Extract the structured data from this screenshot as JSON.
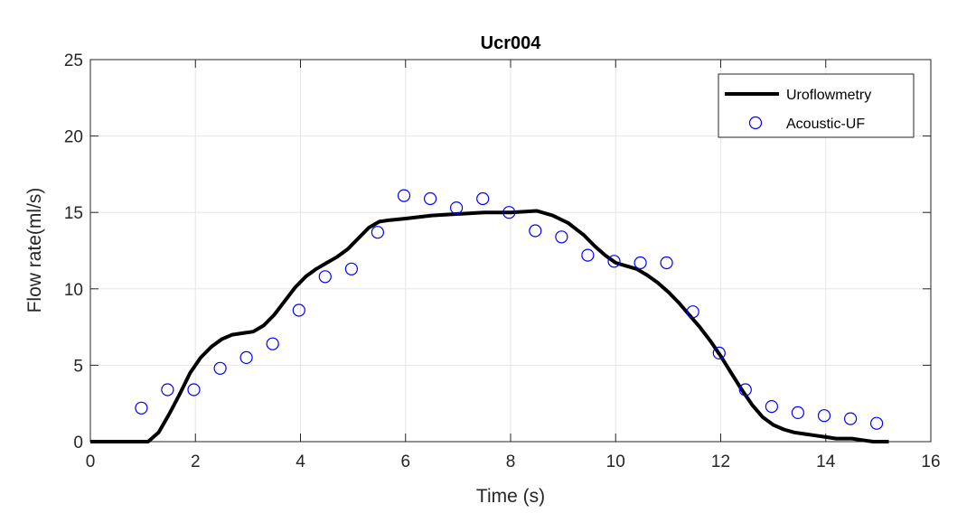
{
  "chart_data": {
    "type": "line",
    "title": "Ucr004",
    "xlabel": "Time (s)",
    "ylabel": "Flow rate(ml/s)",
    "xlim": [
      0,
      16
    ],
    "ylim": [
      0,
      25
    ],
    "xticks": [
      0,
      2,
      4,
      6,
      8,
      10,
      12,
      14,
      16
    ],
    "yticks": [
      0,
      5,
      10,
      15,
      20,
      25
    ],
    "grid": true,
    "legend_position": "top-right",
    "series": [
      {
        "name": "Uroflowmetry",
        "style": "line",
        "color": "#000000",
        "x": [
          0,
          1.1,
          1.3,
          1.5,
          1.7,
          1.9,
          2.1,
          2.3,
          2.5,
          2.7,
          2.9,
          3.1,
          3.3,
          3.5,
          3.7,
          3.9,
          4.1,
          4.3,
          4.5,
          4.7,
          4.9,
          5.1,
          5.3,
          5.5,
          5.7,
          6.0,
          6.5,
          7.0,
          7.5,
          8.0,
          8.5,
          8.8,
          9.1,
          9.4,
          9.6,
          9.8,
          10.0,
          10.2,
          10.4,
          10.6,
          10.8,
          11.0,
          11.2,
          11.4,
          11.6,
          11.8,
          12.0,
          12.2,
          12.4,
          12.6,
          12.8,
          13.0,
          13.2,
          13.4,
          13.6,
          13.8,
          14.0,
          14.2,
          14.5,
          14.7,
          14.9,
          15.2
        ],
        "y": [
          0,
          0,
          0.6,
          1.8,
          3.1,
          4.5,
          5.5,
          6.2,
          6.7,
          7.0,
          7.1,
          7.2,
          7.6,
          8.3,
          9.2,
          10.1,
          10.8,
          11.3,
          11.7,
          12.1,
          12.6,
          13.3,
          14.0,
          14.4,
          14.5,
          14.6,
          14.8,
          14.9,
          15.0,
          15.0,
          15.1,
          14.8,
          14.3,
          13.5,
          12.8,
          12.2,
          11.7,
          11.5,
          11.3,
          10.9,
          10.4,
          9.8,
          9.1,
          8.3,
          7.5,
          6.6,
          5.6,
          4.5,
          3.4,
          2.4,
          1.6,
          1.1,
          0.8,
          0.6,
          0.5,
          0.4,
          0.3,
          0.2,
          0.2,
          0.1,
          0,
          0
        ]
      },
      {
        "name": "Acoustic-UF",
        "style": "markers",
        "color": "#0000ff",
        "x": [
          0.97,
          1.47,
          1.97,
          2.47,
          2.97,
          3.47,
          3.97,
          4.47,
          4.97,
          5.47,
          5.97,
          6.47,
          6.97,
          7.47,
          7.97,
          8.47,
          8.97,
          9.47,
          9.97,
          10.47,
          10.97,
          11.47,
          11.97,
          12.47,
          12.97,
          13.47,
          13.97,
          14.47,
          14.97
        ],
        "y": [
          2.2,
          3.4,
          3.4,
          4.8,
          5.5,
          6.4,
          8.6,
          10.8,
          11.3,
          13.7,
          16.1,
          15.9,
          15.3,
          15.9,
          15.0,
          13.8,
          13.4,
          12.2,
          11.8,
          11.7,
          11.7,
          8.5,
          5.8,
          3.4,
          2.3,
          1.9,
          1.7,
          1.5,
          1.2
        ]
      }
    ]
  }
}
